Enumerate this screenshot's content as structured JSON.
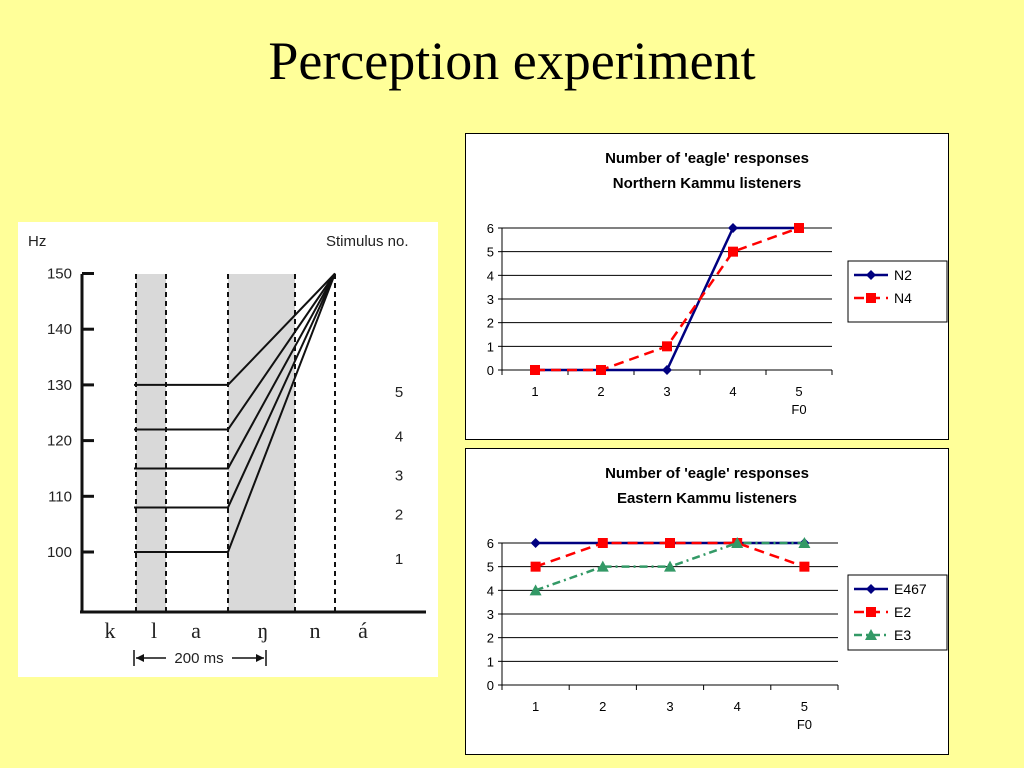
{
  "slide": {
    "title": "Perception experiment"
  },
  "stimulus_figure": {
    "y_unit": "Hz",
    "header": "Stimulus no.",
    "y_ticks": [
      "150",
      "140",
      "130",
      "120",
      "110",
      "100"
    ],
    "stimuli": [
      {
        "number": "5",
        "start_hz": 130,
        "end_hz": 150
      },
      {
        "number": "4",
        "start_hz": 122,
        "end_hz": 150
      },
      {
        "number": "3",
        "start_hz": 115,
        "end_hz": 150
      },
      {
        "number": "2",
        "start_hz": 108,
        "end_hz": 150
      },
      {
        "number": "1",
        "start_hz": 100,
        "end_hz": 150
      }
    ],
    "segments": [
      "k",
      "l",
      "a",
      "ŋ",
      "n",
      "á"
    ],
    "duration_label": "200 ms"
  },
  "chart_data": [
    {
      "type": "line",
      "title": "Number of 'eagle' responses",
      "subtitle": "Northern Kammu listeners",
      "xlabel": "F0",
      "ylabel": "",
      "categories": [
        "1",
        "2",
        "3",
        "4",
        "5"
      ],
      "ylim": [
        0,
        6
      ],
      "y_ticks": [
        "0",
        "1",
        "2",
        "3",
        "4",
        "5",
        "6"
      ],
      "grid": true,
      "legend_position": "right",
      "series": [
        {
          "name": "N2",
          "values": [
            0,
            0,
            0,
            6,
            6
          ],
          "color": "#000080",
          "marker": "diamond",
          "dash": "solid"
        },
        {
          "name": "N4",
          "values": [
            0,
            0,
            1,
            5,
            6
          ],
          "color": "#ff0000",
          "marker": "square",
          "dash": "dashed"
        }
      ]
    },
    {
      "type": "line",
      "title": "Number of 'eagle' responses",
      "subtitle": "Eastern Kammu listeners",
      "xlabel": "F0",
      "ylabel": "",
      "categories": [
        "1",
        "2",
        "3",
        "4",
        "5"
      ],
      "ylim": [
        0,
        6
      ],
      "y_ticks": [
        "0",
        "1",
        "2",
        "3",
        "4",
        "5",
        "6"
      ],
      "grid": true,
      "legend_position": "right",
      "series": [
        {
          "name": "E467",
          "values": [
            6,
            6,
            6,
            6,
            6
          ],
          "color": "#000080",
          "marker": "diamond",
          "dash": "solid"
        },
        {
          "name": "E2",
          "values": [
            5,
            6,
            6,
            6,
            5
          ],
          "color": "#ff0000",
          "marker": "square",
          "dash": "dashed"
        },
        {
          "name": "E3",
          "values": [
            4,
            5,
            5,
            6,
            6
          ],
          "color": "#339966",
          "marker": "triangle",
          "dash": "dashdot"
        }
      ]
    }
  ]
}
